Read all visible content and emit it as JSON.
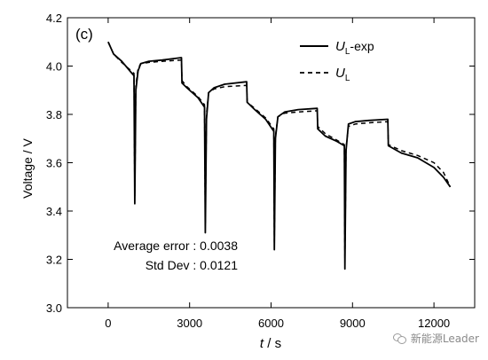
{
  "chart_data": {
    "type": "line",
    "panel_label": "(c)",
    "xlabel": "t / s",
    "ylabel": "Voltage / V",
    "xlim": [
      -1500,
      13500
    ],
    "ylim": [
      3.0,
      4.2
    ],
    "x_ticks": [
      0,
      3000,
      6000,
      9000,
      12000
    ],
    "y_ticks": [
      3.0,
      3.2,
      3.4,
      3.6,
      3.8,
      4.0,
      4.2
    ],
    "x_tick_labels": [
      "0",
      "3000",
      "6000",
      "9000",
      "12000"
    ],
    "y_tick_labels": [
      "3.0",
      "3.2",
      "3.4",
      "3.6",
      "3.8",
      "4.0",
      "4.2"
    ],
    "grid": false,
    "legend_position": "top-right",
    "annotations": [
      "Average error : 0.0038",
      "Std Dev : 0.0121"
    ],
    "series": [
      {
        "legend_main": "U",
        "legend_sub": "L",
        "legend_suffix": "-exp",
        "style": "solid",
        "color": "#000000",
        "points": [
          [
            0,
            4.1
          ],
          [
            200,
            4.05
          ],
          [
            500,
            4.02
          ],
          [
            800,
            3.98
          ],
          [
            950,
            3.96
          ],
          [
            980,
            3.43
          ],
          [
            1020,
            3.9
          ],
          [
            1100,
            3.98
          ],
          [
            1200,
            4.01
          ],
          [
            1500,
            4.02
          ],
          [
            2000,
            4.025
          ],
          [
            2700,
            4.035
          ],
          [
            2720,
            3.93
          ],
          [
            2900,
            3.91
          ],
          [
            3300,
            3.87
          ],
          [
            3550,
            3.83
          ],
          [
            3580,
            3.31
          ],
          [
            3620,
            3.78
          ],
          [
            3700,
            3.89
          ],
          [
            3900,
            3.91
          ],
          [
            4300,
            3.925
          ],
          [
            5100,
            3.935
          ],
          [
            5120,
            3.85
          ],
          [
            5400,
            3.82
          ],
          [
            5800,
            3.78
          ],
          [
            6100,
            3.73
          ],
          [
            6120,
            3.24
          ],
          [
            6160,
            3.7
          ],
          [
            6250,
            3.79
          ],
          [
            6500,
            3.81
          ],
          [
            7000,
            3.82
          ],
          [
            7700,
            3.825
          ],
          [
            7720,
            3.74
          ],
          [
            8000,
            3.71
          ],
          [
            8400,
            3.69
          ],
          [
            8700,
            3.67
          ],
          [
            8720,
            3.16
          ],
          [
            8760,
            3.65
          ],
          [
            8850,
            3.76
          ],
          [
            9100,
            3.77
          ],
          [
            9600,
            3.775
          ],
          [
            10300,
            3.78
          ],
          [
            10320,
            3.67
          ],
          [
            10800,
            3.64
          ],
          [
            11400,
            3.62
          ],
          [
            12000,
            3.58
          ],
          [
            12350,
            3.54
          ],
          [
            12600,
            3.5
          ]
        ]
      },
      {
        "legend_main": "U",
        "legend_sub": "L",
        "legend_suffix": "",
        "style": "dashed",
        "color": "#000000",
        "points": [
          [
            0,
            4.1
          ],
          [
            200,
            4.05
          ],
          [
            500,
            4.015
          ],
          [
            800,
            3.985
          ],
          [
            950,
            3.97
          ],
          [
            980,
            3.46
          ],
          [
            1020,
            3.92
          ],
          [
            1100,
            3.99
          ],
          [
            1200,
            4.01
          ],
          [
            1500,
            4.015
          ],
          [
            2000,
            4.02
          ],
          [
            2700,
            4.025
          ],
          [
            2720,
            3.94
          ],
          [
            2900,
            3.915
          ],
          [
            3300,
            3.875
          ],
          [
            3550,
            3.84
          ],
          [
            3580,
            3.35
          ],
          [
            3620,
            3.8
          ],
          [
            3700,
            3.89
          ],
          [
            3900,
            3.905
          ],
          [
            4300,
            3.915
          ],
          [
            5100,
            3.92
          ],
          [
            5120,
            3.85
          ],
          [
            5400,
            3.825
          ],
          [
            5800,
            3.785
          ],
          [
            6100,
            3.74
          ],
          [
            6120,
            3.27
          ],
          [
            6160,
            3.71
          ],
          [
            6250,
            3.79
          ],
          [
            6500,
            3.805
          ],
          [
            7000,
            3.81
          ],
          [
            7700,
            3.815
          ],
          [
            7720,
            3.75
          ],
          [
            8000,
            3.72
          ],
          [
            8400,
            3.695
          ],
          [
            8700,
            3.675
          ],
          [
            8720,
            3.2
          ],
          [
            8760,
            3.66
          ],
          [
            8850,
            3.75
          ],
          [
            9100,
            3.76
          ],
          [
            9600,
            3.765
          ],
          [
            10300,
            3.77
          ],
          [
            10320,
            3.675
          ],
          [
            10800,
            3.65
          ],
          [
            11400,
            3.63
          ],
          [
            12000,
            3.6
          ],
          [
            12350,
            3.56
          ],
          [
            12600,
            3.5
          ]
        ]
      }
    ]
  },
  "watermark": {
    "icon": "wechat-icon",
    "text": "新能源Leader"
  }
}
